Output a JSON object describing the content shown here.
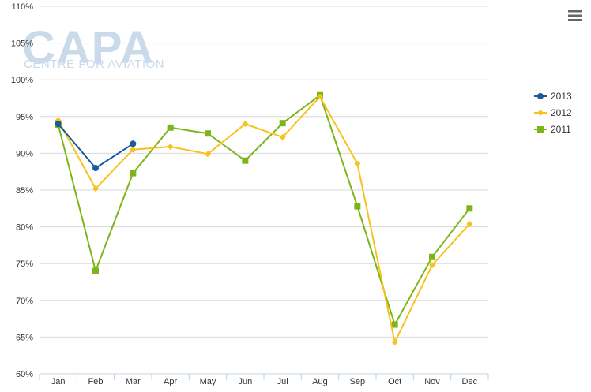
{
  "watermark": {
    "title": "CAPA",
    "subtitle": "CENTRE FOR AVIATION"
  },
  "menu_icon": "hamburger-menu-icon",
  "colors": {
    "2013": "#1a5a9b",
    "2012": "#f8c21c",
    "2011": "#7cb518",
    "grid": "#d8d8d8",
    "axis": "#c0d0e0"
  },
  "chart_data": {
    "type": "line",
    "categories": [
      "Jan",
      "Feb",
      "Mar",
      "Apr",
      "May",
      "Jun",
      "Jul",
      "Aug",
      "Sep",
      "Oct",
      "Nov",
      "Dec"
    ],
    "ylim": [
      60,
      110
    ],
    "yticks": [
      60,
      65,
      70,
      75,
      80,
      85,
      90,
      95,
      100,
      105,
      110
    ],
    "ytick_labels": [
      "60%",
      "65%",
      "70%",
      "75%",
      "80%",
      "85%",
      "90%",
      "95%",
      "100%",
      "105%",
      "110%"
    ],
    "grid": true,
    "legend": "right",
    "series": [
      {
        "name": "2013",
        "marker": "circle",
        "values": [
          94.0,
          88.0,
          91.3,
          null,
          null,
          null,
          null,
          null,
          null,
          null,
          null,
          null
        ]
      },
      {
        "name": "2012",
        "marker": "diamond",
        "values": [
          94.5,
          85.2,
          90.5,
          90.9,
          89.9,
          94.0,
          92.2,
          97.7,
          88.6,
          64.3,
          74.8,
          80.4
        ]
      },
      {
        "name": "2011",
        "marker": "square",
        "values": [
          93.9,
          74.0,
          87.3,
          93.5,
          92.7,
          89.0,
          94.1,
          97.9,
          82.8,
          66.7,
          75.9,
          82.5
        ]
      }
    ]
  }
}
